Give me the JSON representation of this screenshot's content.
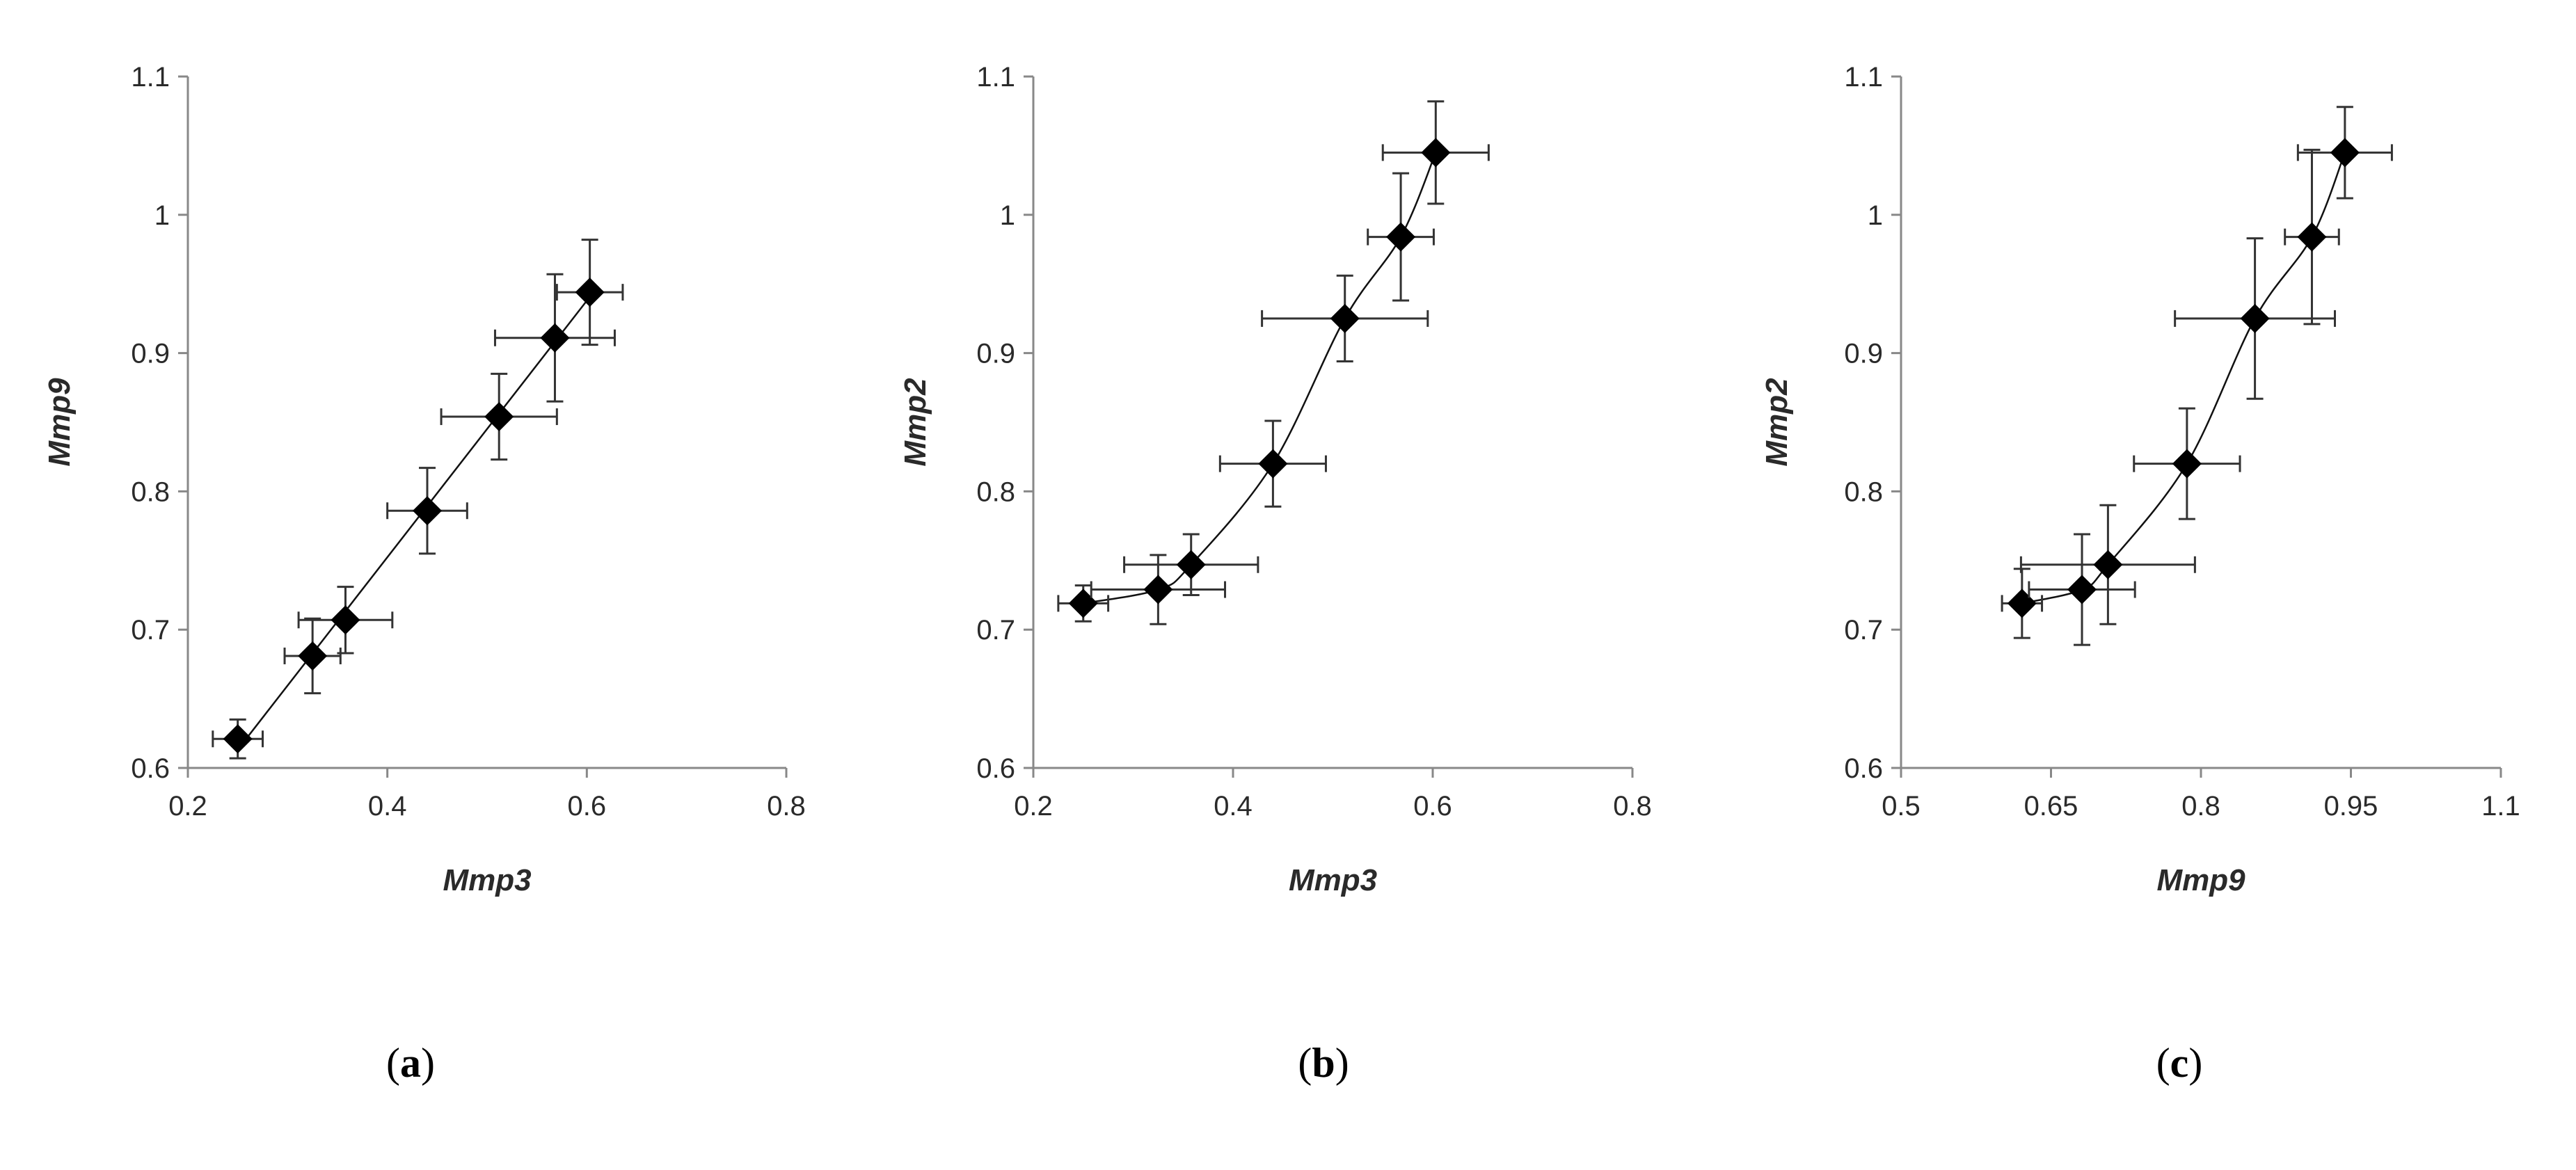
{
  "chart_data": [
    {
      "type": "scatter",
      "panel_label": "a",
      "xlabel": "Mmp3",
      "ylabel": "Mmp9",
      "xlim": [
        0.2,
        0.8
      ],
      "ylim": [
        0.6,
        1.1
      ],
      "xticks": [
        0.2,
        0.4,
        0.6,
        0.8
      ],
      "xtick_labels": [
        "0.2",
        "0.4",
        "0.6",
        "0.8"
      ],
      "yticks": [
        0.6,
        0.7,
        0.8,
        0.9,
        1.0,
        1.1
      ],
      "ytick_labels": [
        "0.6",
        "0.7",
        "0.8",
        "0.9",
        "1",
        "1.1"
      ],
      "grid": false,
      "fit": "linear",
      "points": [
        {
          "x": 0.25,
          "y": 0.621,
          "xerr": 0.025,
          "yerr": 0.014
        },
        {
          "x": 0.325,
          "y": 0.681,
          "xerr": 0.028,
          "yerr": 0.027
        },
        {
          "x": 0.358,
          "y": 0.707,
          "xerr": 0.047,
          "yerr": 0.024
        },
        {
          "x": 0.44,
          "y": 0.786,
          "xerr": 0.04,
          "yerr": 0.031
        },
        {
          "x": 0.512,
          "y": 0.854,
          "xerr": 0.058,
          "yerr": 0.031
        },
        {
          "x": 0.568,
          "y": 0.911,
          "xerr": 0.06,
          "yerr": 0.046
        },
        {
          "x": 0.603,
          "y": 0.944,
          "xerr": 0.033,
          "yerr": 0.038
        }
      ]
    },
    {
      "type": "scatter",
      "panel_label": "b",
      "xlabel": "Mmp3",
      "ylabel": "Mmp2",
      "xlim": [
        0.2,
        0.8
      ],
      "ylim": [
        0.6,
        1.1
      ],
      "xticks": [
        0.2,
        0.4,
        0.6,
        0.8
      ],
      "xtick_labels": [
        "0.2",
        "0.4",
        "0.6",
        "0.8"
      ],
      "yticks": [
        0.6,
        0.7,
        0.8,
        0.9,
        1.0,
        1.1
      ],
      "ytick_labels": [
        "0.6",
        "0.7",
        "0.8",
        "0.9",
        "1",
        "1.1"
      ],
      "grid": false,
      "fit": "curve",
      "points": [
        {
          "x": 0.25,
          "y": 0.719,
          "xerr": 0.025,
          "yerr": 0.013
        },
        {
          "x": 0.325,
          "y": 0.729,
          "xerr": 0.067,
          "yerr": 0.025
        },
        {
          "x": 0.358,
          "y": 0.747,
          "xerr": 0.067,
          "yerr": 0.022
        },
        {
          "x": 0.44,
          "y": 0.82,
          "xerr": 0.053,
          "yerr": 0.031
        },
        {
          "x": 0.512,
          "y": 0.925,
          "xerr": 0.083,
          "yerr": 0.031
        },
        {
          "x": 0.568,
          "y": 0.984,
          "xerr": 0.033,
          "yerr": 0.046
        },
        {
          "x": 0.603,
          "y": 1.045,
          "xerr": 0.053,
          "yerr": 0.037
        }
      ]
    },
    {
      "type": "scatter",
      "panel_label": "c",
      "xlabel": "Mmp9",
      "ylabel": "Mmp2",
      "xlim": [
        0.5,
        1.1
      ],
      "ylim": [
        0.6,
        1.1
      ],
      "xticks": [
        0.5,
        0.65,
        0.8,
        0.95,
        1.1
      ],
      "xtick_labels": [
        "0.5",
        "0.65",
        "0.8",
        "0.95",
        "1.1"
      ],
      "yticks": [
        0.6,
        0.7,
        0.8,
        0.9,
        1.0,
        1.1
      ],
      "ytick_labels": [
        "0.6",
        "0.7",
        "0.8",
        "0.9",
        "1",
        "1.1"
      ],
      "grid": false,
      "fit": "curve",
      "points": [
        {
          "x": 0.621,
          "y": 0.719,
          "xerr": 0.02,
          "yerr": 0.025
        },
        {
          "x": 0.681,
          "y": 0.729,
          "xerr": 0.053,
          "yerr": 0.04
        },
        {
          "x": 0.707,
          "y": 0.747,
          "xerr": 0.087,
          "yerr": 0.043
        },
        {
          "x": 0.786,
          "y": 0.82,
          "xerr": 0.053,
          "yerr": 0.04
        },
        {
          "x": 0.854,
          "y": 0.925,
          "xerr": 0.08,
          "yerr": 0.058
        },
        {
          "x": 0.911,
          "y": 0.984,
          "xerr": 0.027,
          "yerr": 0.063
        },
        {
          "x": 0.944,
          "y": 1.045,
          "xerr": 0.047,
          "yerr": 0.033
        }
      ]
    }
  ]
}
